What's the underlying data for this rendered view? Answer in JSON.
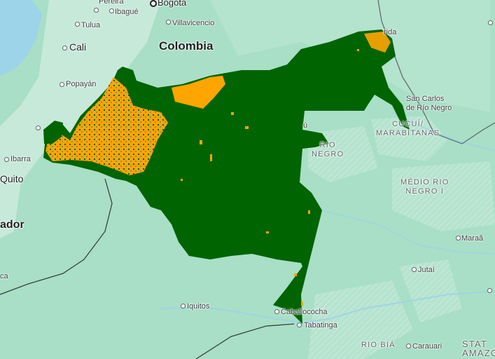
{
  "map": {
    "countries": {
      "colombia": "Colombia",
      "ecuador_partial": "ador"
    },
    "cities": {
      "pereira": "Pereira",
      "ibague": "Ibagué",
      "bogota": "Bogota",
      "tulua": "Tulua",
      "villavicencio": "Villavicencio",
      "cali": "Cali",
      "popayan": "Popayán",
      "ibarra": "Ibarra",
      "quito": "Quito",
      "mitu_partial": "rida",
      "san_carlos": "San Carlos\nde Río Negro",
      "cucui_partial": "ú",
      "iquitos": "Iquitos",
      "caballococha": "Caballococha",
      "tabatinga": "Tabatinga",
      "jutai": "Jutaí",
      "maraa": "Maraã",
      "carauari": "Carauari",
      "left_edge_partial": "ca"
    },
    "areas": {
      "cucui_marabitanas": "CUCUÍ/\nMARABITANAS",
      "rio_negro": "RIO\nNEGRO",
      "medio_rio_negro": "MÉDIO RIO\nNEGRO I",
      "rio_biá": "RIO BIÁ",
      "state_partial": "STAT\nAMAZO"
    },
    "colors": {
      "land": "#a8dfc6",
      "water": "#9dd4e9",
      "forest_layer": "#006400",
      "nonforest_layer": "#ffa500",
      "bare_layer": "#8a8a6e"
    }
  }
}
